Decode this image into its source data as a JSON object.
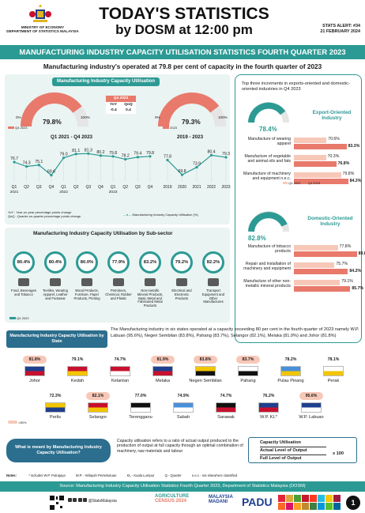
{
  "header": {
    "ministry_line1": "MINISTRY OF ECONOMY",
    "ministry_line2": "DEPARTMENT OF STATISTICS MALAYSIA",
    "title_line1": "TODAY'S STATISTICS",
    "title_line2": "by DOSM at 12:00 pm",
    "alert_no": "STATS ALERT: #34",
    "alert_date": "21 FEBRUARY 2024"
  },
  "banner": "MANUFACTURING INDUSTRY CAPACITY UTILISATION STATISTICS FOURTH QUARTER 2023",
  "subheadline": "Manufacturing industry's operated at 79.8 per cent of capacity in the fourth quarter of 2023",
  "utilisation": {
    "title": "Manufacturing Industry Capacity Utilisation",
    "gauge_q": {
      "value": "79.8%",
      "legend": "Q4 2023",
      "min": "0%",
      "max": "100%",
      "fraction": 0.798
    },
    "table": {
      "head": "Q4 2023",
      "yoy_label": "YoY",
      "qoq_label": "QoQ",
      "yoy": "-0.4",
      "qoq": "0.4"
    },
    "gauge_y": {
      "value": "79.3%",
      "legend": "2023",
      "min": "0%",
      "max": "100%",
      "fraction": 0.793
    },
    "quarterly": {
      "title": "Q1 2021 - Q4 2023",
      "values": [
        76.7,
        74.3,
        75.1,
        69.6,
        79.0,
        81.1,
        81.3,
        80.2,
        79.8,
        78.2,
        79.4,
        79.8
      ],
      "labels": [
        "76.7",
        "74.3",
        "75.1",
        "69.6",
        "79.0",
        "81.1",
        "81.3",
        "80.2",
        "79.8",
        "78.2",
        "79.4",
        "79.8"
      ],
      "ticks": [
        "Q1",
        "Q2",
        "Q3",
        "Q4",
        "Q1",
        "Q2",
        "Q3",
        "Q4",
        "Q1",
        "Q2",
        "Q3",
        "Q4"
      ],
      "years": [
        "2021",
        "2022",
        "2023"
      ]
    },
    "annual": {
      "title": "2019 - 2023",
      "values": [
        77.8,
        69.8,
        73.9,
        80.4,
        79.3
      ],
      "labels": [
        "77.8",
        "69.8",
        "73.9",
        "80.4",
        "79.3"
      ],
      "ticks": [
        "2019",
        "2020",
        "2021",
        "2022",
        "2023"
      ]
    },
    "note1": "YoY : Year-on-year percentage points change",
    "note2": "QoQ : Quarter-on-quarter percentage points change",
    "legend": "Manufacturing Industry Capacity Utilisation (%)"
  },
  "export": {
    "intro": "Top three increments in exports-oriented and domestic-oriented industries in Q4 2023",
    "exp_title": "Export-Oriented Industry",
    "exp_value": "78.4%",
    "exp_items": [
      {
        "name": "Manufacture of wearing apparel",
        "q22": "70.6%",
        "q23": "83.3%",
        "v22": 70.6,
        "v23": 83.3
      },
      {
        "name": "Manufacture of vegetable and animal oils and fats",
        "q22": "70.3%",
        "q23": "76.8%",
        "v22": 70.3,
        "v23": 76.8
      },
      {
        "name": "Manufacture of machinery and equipment n.e.c.",
        "q22": "79.8%",
        "q23": "84.3%",
        "v22": 79.8,
        "v23": 84.3
      }
    ],
    "legend_a": "Q4 2022",
    "legend_b": "Q4 2023",
    "dom_title": "Domestic-Oriented Industry",
    "dom_value": "82.8%",
    "dom_items": [
      {
        "name": "Manufacture of tobacco products",
        "q22": "77.8%",
        "q23": "89.8%",
        "v22": 77.8,
        "v23": 89.8
      },
      {
        "name": "Repair and installation of machinery and equipment",
        "q22": "75.7%",
        "q23": "84.2%",
        "v22": 75.7,
        "v23": 84.2
      },
      {
        "name": "Manufacture of other non-metallic mineral products",
        "q22": "79.1%",
        "q23": "85.7%",
        "v22": 79.1,
        "v23": 85.7
      }
    ]
  },
  "subsector": {
    "title": "Manufacturing Industry Capacity Utilisation by Sub-sector",
    "items": [
      {
        "value": "80.4%",
        "name": "Food, Beverages and Tobacco"
      },
      {
        "value": "80.4%",
        "name": "Textiles, Wearing Apparel, Leather and Footwear"
      },
      {
        "value": "80.0%",
        "name": "Wood Products, Furniture, Paper Products, Printing"
      },
      {
        "value": "77.9%",
        "name": "Petroleum, Chemical, Rubber and Plastic"
      },
      {
        "value": "83.2%",
        "name": "Non-metallic Mineral Products, Basic Metal and Fabricated Metal Products"
      },
      {
        "value": "79.2%",
        "name": "Electrical and Electronic Products"
      },
      {
        "value": "82.2%",
        "name": "Transport Equipment and Other Manufactures"
      }
    ],
    "legend": "Q4 2023"
  },
  "states": {
    "title": "Manufacturing Industry Capacity Utilisation by State",
    "desc": "The Manufacturing industry in six states operated at a capacity exceeding 80 per cent in the fourth quarter of 2023 namely W.P. Labuan (95.6%), Negeri Sembilan (83.8%), Pahang (83.7%), Selangor (82.1%), Melaka (81.9%) and Johor (81.8%)",
    "legend": ">80%",
    "row1": [
      {
        "name": "Johor",
        "value": "81.8%",
        "hi": true
      },
      {
        "name": "Kedah",
        "value": "79.1%",
        "hi": false
      },
      {
        "name": "Kelantan",
        "value": "74.7%",
        "hi": false
      },
      {
        "name": "Melaka",
        "value": "81.9%",
        "hi": true
      },
      {
        "name": "Negeri Sembilan",
        "value": "83.8%",
        "hi": true
      },
      {
        "name": "Pahang",
        "value": "83.7%",
        "hi": true
      },
      {
        "name": "Pulau Pinang",
        "value": "78.2%",
        "hi": false
      },
      {
        "name": "Perak",
        "value": "78.1%",
        "hi": false
      }
    ],
    "row2": [
      {
        "name": "Perlis",
        "value": "72.3%",
        "hi": false
      },
      {
        "name": "Selangor",
        "value": "82.1%",
        "hi": true
      },
      {
        "name": "Terengganu",
        "value": "77.0%",
        "hi": false
      },
      {
        "name": "Sabah",
        "value": "74.9%",
        "hi": false
      },
      {
        "name": "Sarawak",
        "value": "74.7%",
        "hi": false
      },
      {
        "name": "W.P. KL*",
        "value": "76.2%",
        "hi": false
      },
      {
        "name": "W.P. Labuan",
        "value": "95.6%",
        "hi": true
      }
    ]
  },
  "definition": {
    "question": "What is meant by Manufacturing Industry Capacity Utilisation?",
    "text": "Capacity utilisation refers to a ratio of actual output produced to the production of output at full capacity through an optimal combination of machinery, raw materials and labour",
    "f_title": "Capacity Utilisation",
    "f_num": "Actual Level of Output",
    "f_den": "Full Level of Output",
    "f_mult": "x 100"
  },
  "notes": {
    "label": "Notes:",
    "n1": "* includes W.P. Putrajaya",
    "n2": "W.P. - Wilayah Persekutuan",
    "n3": "KL - Kuala Lumpur",
    "n4": "Q - Quarter",
    "n5": "n.e.c - not elsewhere classified"
  },
  "source": "Source: Manufacturing Industry Capacity Utilisation Statistics Fourth Quarter 2023, Department of Statistics Malaysia (DOSM)",
  "footer": {
    "social": "@StatsMalaysia",
    "agri_line1": "AGRICULTURE",
    "agri_line2": "CENSUS 2024",
    "madani_line1": "MALAYSIA",
    "madani_line2": "MADANI",
    "padu": "PADU",
    "page": "1"
  },
  "colors": {
    "teal": "#2c9a94",
    "salmon": "#e8796b",
    "peach": "#f7c8b8",
    "navy": "#2c6e8e"
  }
}
